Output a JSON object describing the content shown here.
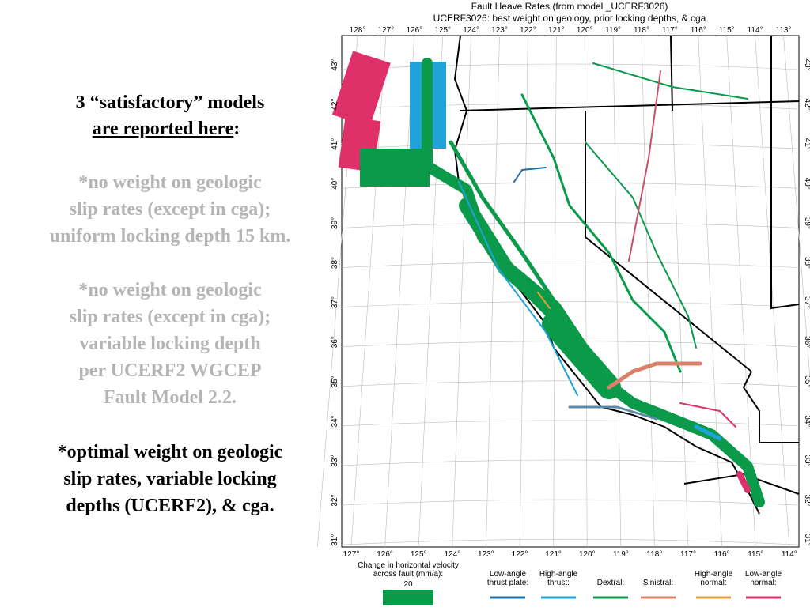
{
  "slide": {
    "heading": {
      "line1": "3 “satisfactory” models",
      "line2": "are reported here",
      "line2_suffix": ":"
    },
    "items": [
      {
        "color": "#b5b5b5",
        "lines": [
          "*no weight on geologic",
          "slip rates (except in cga);",
          "uniform locking depth 15 km."
        ]
      },
      {
        "color": "#b5b5b5",
        "lines": [
          "*no weight on geologic",
          "slip rates (except in cga);",
          "variable locking depth",
          "per UCERF2 WGCEP",
          "Fault Model 2.2."
        ]
      },
      {
        "color": "#000000",
        "lines": [
          "*optimal weight on geologic",
          "slip rates, variable locking",
          "depths (UCERF2), & cga."
        ]
      }
    ]
  },
  "map": {
    "title": "Fault Heave Rates (from model _UCERF3026)",
    "subtitle": "UCERF3026: best weight on geology, prior locking depths, & cga",
    "top_labels": [
      "128°",
      "127°",
      "126°",
      "125°",
      "124°",
      "123°",
      "122°",
      "121°",
      "120°",
      "119°",
      "118°",
      "117°",
      "116°",
      "115°",
      "114°",
      "113°"
    ],
    "bottom_labels": [
      "127°",
      "126°",
      "125°",
      "124°",
      "123°",
      "122°",
      "121°",
      "120°",
      "119°",
      "118°",
      "117°",
      "116°",
      "115°",
      "114°"
    ],
    "lat_labels": [
      "43°",
      "42°",
      "41°",
      "40°",
      "39°",
      "38°",
      "37°",
      "36°",
      "35°",
      "34°",
      "33°",
      "32°",
      "31°"
    ],
    "scale": {
      "lines": [
        "Change in horizontal velocity",
        "across fault (mm/a):"
      ],
      "value": "20",
      "color": "#0a9a4a"
    },
    "legend": [
      {
        "lines": [
          "Low-angle",
          "thrust plate:"
        ],
        "color": "#1b6fa8"
      },
      {
        "lines": [
          "High-angle",
          "thrust:"
        ],
        "color": "#1fa3d8"
      },
      {
        "lines": [
          "Dextral:"
        ],
        "color": "#0a9a4a"
      },
      {
        "lines": [
          "Sinistral:"
        ],
        "color": "#d9826a"
      },
      {
        "lines": [
          "High-angle",
          "normal:"
        ],
        "color": "#e0a030"
      },
      {
        "lines": [
          "Low-angle",
          "normal:"
        ],
        "color": "#e0306a"
      }
    ]
  }
}
